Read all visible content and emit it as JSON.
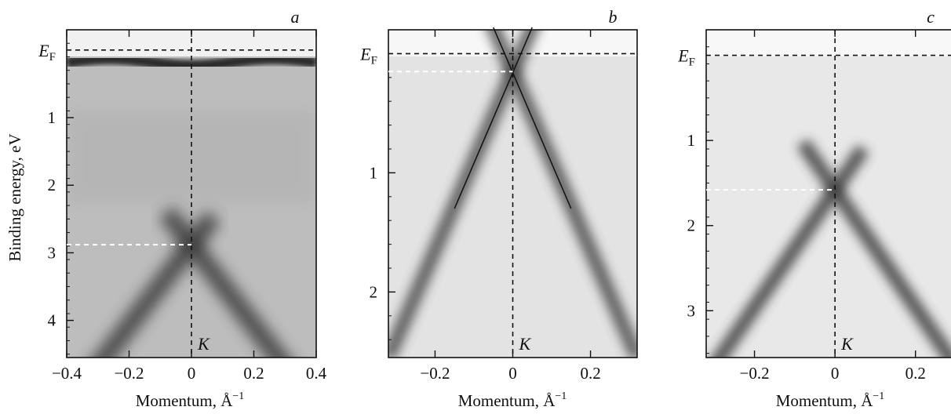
{
  "ylabel": "Binding energy, eV",
  "ef_label": "E",
  "ef_sub": "F",
  "k_label": "K",
  "chart_data": [
    {
      "type": "heatmap",
      "panel": "a",
      "xlabel": "Momentum, Å",
      "xlabel_sup": "−1",
      "xlim": [
        -0.4,
        0.4
      ],
      "ylim": [
        4.55,
        -0.3
      ],
      "xticks": [
        -0.4,
        -0.2,
        0,
        0.2,
        0.4
      ],
      "xtick_labels": [
        "−0.4",
        "−0.2",
        "0",
        "0.2",
        "0.4"
      ],
      "yticks": [
        1,
        2,
        3,
        4
      ],
      "ytick_labels": [
        "1",
        "2",
        "3",
        "4"
      ],
      "fermi_level": 0,
      "band_crossing_energy": 2.88,
      "k_point": 0,
      "features": {
        "flat_band_energy": 0.18,
        "dirac_point": 2.88,
        "dirac_slope": 6.0
      }
    },
    {
      "type": "heatmap",
      "panel": "b",
      "xlabel": "Momentum, Å",
      "xlabel_sup": "−1",
      "xlim": [
        -0.32,
        0.32
      ],
      "ylim": [
        2.55,
        -0.2
      ],
      "xticks": [
        -0.2,
        0,
        0.2
      ],
      "xtick_labels": [
        "−0.2",
        "0",
        "0.2"
      ],
      "yticks": [
        1,
        2
      ],
      "ytick_labels": [
        "1",
        "2"
      ],
      "fermi_level": 0,
      "band_crossing_energy": 0.15,
      "k_point": 0,
      "features": {
        "dirac_point": 0.15,
        "dirac_slope": 7.5,
        "fit_lines": [
          {
            "x": [
              -0.05,
              0.15
            ],
            "y": [
              -0.22,
              1.3
            ]
          },
          {
            "x": [
              0.05,
              -0.15
            ],
            "y": [
              -0.22,
              1.3
            ]
          }
        ]
      }
    },
    {
      "type": "heatmap",
      "panel": "c",
      "xlabel": "Momentum, Å",
      "xlabel_sup": "−1",
      "xlim": [
        -0.32,
        0.3
      ],
      "ylim": [
        3.55,
        -0.3
      ],
      "xticks": [
        -0.2,
        0,
        0.2
      ],
      "xtick_labels": [
        "−0.2",
        "0",
        "0.2"
      ],
      "yticks": [
        1,
        2,
        3
      ],
      "ytick_labels": [
        "1",
        "2",
        "3"
      ],
      "fermi_level": 0,
      "band_crossing_energy": 1.58,
      "k_point": 0,
      "features": {
        "dirac_point": 1.58,
        "dirac_slope": 6.9
      }
    }
  ]
}
